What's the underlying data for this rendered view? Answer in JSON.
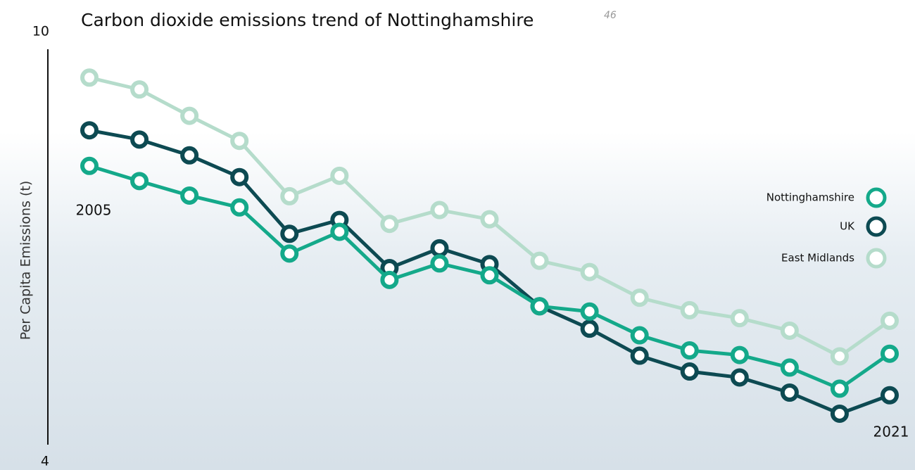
{
  "chart_data": {
    "type": "line",
    "title": "Carbon dioxide emissions trend of Nottinghamshire",
    "title_note": "46",
    "y_label": "Per Capita Emissions (t)",
    "categories": [
      "2005",
      null,
      null,
      null,
      null,
      null,
      null,
      null,
      null,
      null,
      null,
      null,
      null,
      null,
      null,
      null,
      "2021"
    ],
    "ylim": [
      4,
      10
    ],
    "yticks": [
      10,
      4
    ],
    "series": [
      {
        "name": "Nottinghamshire",
        "color": "#14a98a",
        "values": [
          8.23,
          8.0,
          7.78,
          7.6,
          6.9,
          7.23,
          6.5,
          6.75,
          6.57,
          6.1,
          6.02,
          5.66,
          5.43,
          5.36,
          5.17,
          4.85,
          5.38
        ]
      },
      {
        "name": "UK",
        "color": "#0d4a52",
        "values": [
          8.77,
          8.63,
          8.39,
          8.06,
          7.2,
          7.41,
          6.68,
          6.98,
          6.74,
          6.1,
          5.76,
          5.35,
          5.11,
          5.02,
          4.79,
          4.47,
          4.75
        ]
      },
      {
        "name": "East Midlands",
        "color": "#b5dccb",
        "values": [
          9.57,
          9.39,
          8.99,
          8.61,
          7.77,
          8.08,
          7.35,
          7.56,
          7.42,
          6.79,
          6.62,
          6.23,
          6.04,
          5.92,
          5.73,
          5.34,
          5.88
        ]
      }
    ]
  }
}
